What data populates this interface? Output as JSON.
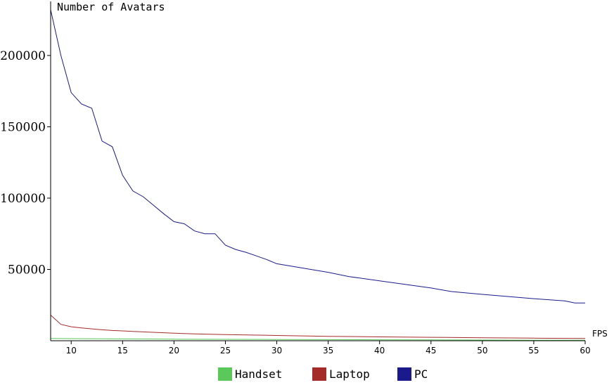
{
  "chart_data": {
    "type": "line",
    "title": "",
    "xlabel": "FPS",
    "ylabel": "Number of Avatars",
    "xlim": [
      8,
      60
    ],
    "ylim": [
      0,
      232000
    ],
    "xticks": [
      10,
      15,
      20,
      25,
      30,
      35,
      40,
      45,
      50,
      55,
      60
    ],
    "yticks": [
      50000,
      100000,
      150000,
      200000
    ],
    "grid": false,
    "legend_position": "bottom",
    "series": [
      {
        "name": "Handset",
        "color": "#5ac85a",
        "x": [
          8,
          10,
          15,
          20,
          25,
          30,
          35,
          40,
          45,
          50,
          55,
          60
        ],
        "y": [
          1600,
          1500,
          1300,
          1100,
          1000,
          900,
          800,
          700,
          600,
          500,
          400,
          350
        ]
      },
      {
        "name": "Laptop",
        "color": "#a52a2a",
        "x": [
          8,
          9,
          10,
          11,
          12,
          13,
          14,
          15,
          16,
          17,
          18,
          19,
          20,
          22,
          25,
          30,
          35,
          40,
          45,
          50,
          55,
          60
        ],
        "y": [
          18000,
          11500,
          9800,
          9000,
          8300,
          7700,
          7200,
          6900,
          6500,
          6200,
          5900,
          5600,
          5300,
          4800,
          4300,
          3700,
          3100,
          2700,
          2400,
          2100,
          1800,
          1600
        ]
      },
      {
        "name": "PC",
        "color": "#1a1a8c",
        "x": [
          8,
          9,
          10,
          11,
          12,
          13,
          14,
          15,
          16,
          17,
          18,
          19,
          20,
          21,
          22,
          23,
          24,
          25,
          26,
          27,
          28,
          29,
          30,
          35,
          37,
          40,
          45,
          47,
          50,
          55,
          58,
          59,
          60
        ],
        "y": [
          232000,
          200000,
          174000,
          166000,
          163000,
          140000,
          136000,
          116000,
          105000,
          101000,
          95000,
          89000,
          83500,
          82000,
          77000,
          75000,
          75000,
          67000,
          64000,
          62000,
          59500,
          57000,
          54000,
          48000,
          45000,
          42000,
          37000,
          34500,
          32500,
          29500,
          28000,
          26500,
          26500
        ]
      }
    ]
  }
}
